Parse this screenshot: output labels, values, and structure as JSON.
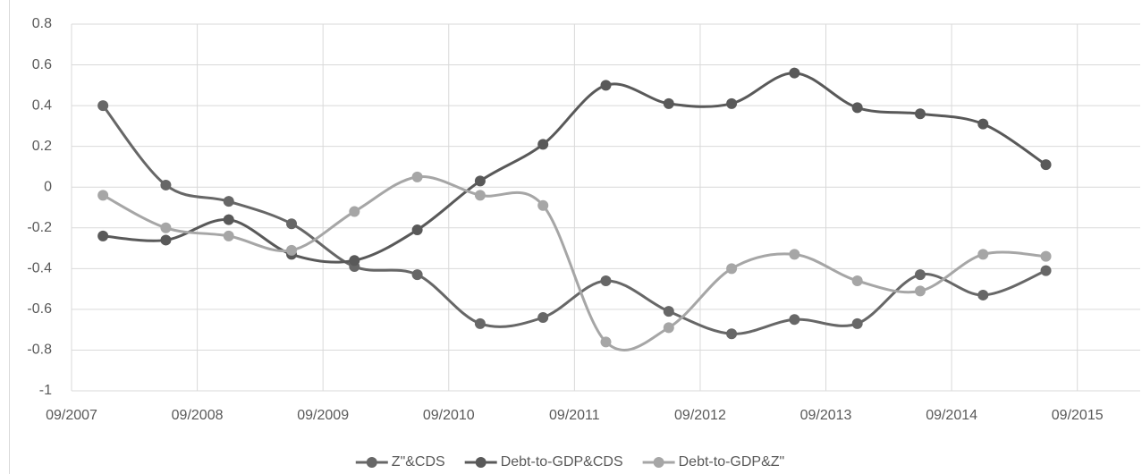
{
  "chart_data": {
    "type": "line",
    "x": [
      "2007-12",
      "2008-06",
      "2008-12",
      "2009-06",
      "2009-12",
      "2010-06",
      "2010-12",
      "2011-06",
      "2011-12",
      "2012-06",
      "2012-12",
      "2013-06",
      "2013-12",
      "2014-06",
      "2014-12",
      "2015-06"
    ],
    "series": [
      {
        "name": "Z\"&CDS",
        "color": "#676767",
        "values": [
          0.4,
          0.01,
          -0.07,
          -0.18,
          -0.39,
          -0.43,
          -0.67,
          -0.64,
          -0.46,
          -0.61,
          -0.72,
          -0.65,
          -0.67,
          -0.43,
          -0.53,
          -0.41
        ]
      },
      {
        "name": "Debt-to-GDP&CDS",
        "color": "#595959",
        "values": [
          -0.24,
          -0.26,
          -0.16,
          -0.33,
          -0.36,
          -0.21,
          0.03,
          0.21,
          0.5,
          0.41,
          0.41,
          0.56,
          0.39,
          0.36,
          0.31,
          0.11
        ]
      },
      {
        "name": "Debt-to-GDP&Z\"",
        "color": "#a6a6a6",
        "values": [
          -0.04,
          -0.2,
          -0.24,
          -0.31,
          -0.12,
          0.05,
          -0.04,
          -0.09,
          -0.76,
          -0.69,
          -0.4,
          -0.33,
          -0.46,
          -0.51,
          -0.33,
          -0.34
        ]
      }
    ],
    "xlim": [
      "2007-09",
      "2016-03"
    ],
    "xticks": [
      {
        "value": "2007-09",
        "label": "09/2007"
      },
      {
        "value": "2008-09",
        "label": "09/2008"
      },
      {
        "value": "2009-09",
        "label": "09/2009"
      },
      {
        "value": "2010-09",
        "label": "09/2010"
      },
      {
        "value": "2011-09",
        "label": "09/2011"
      },
      {
        "value": "2012-09",
        "label": "09/2012"
      },
      {
        "value": "2013-09",
        "label": "09/2013"
      },
      {
        "value": "2014-09",
        "label": "09/2014"
      },
      {
        "value": "2015-09",
        "label": "09/2015"
      }
    ],
    "ylim": [
      -1,
      0.8
    ],
    "yticks": [
      -1,
      -0.8,
      -0.6,
      -0.4,
      -0.2,
      0,
      0.2,
      0.4,
      0.6,
      0.8
    ],
    "grid": true,
    "legend": "bottom"
  }
}
